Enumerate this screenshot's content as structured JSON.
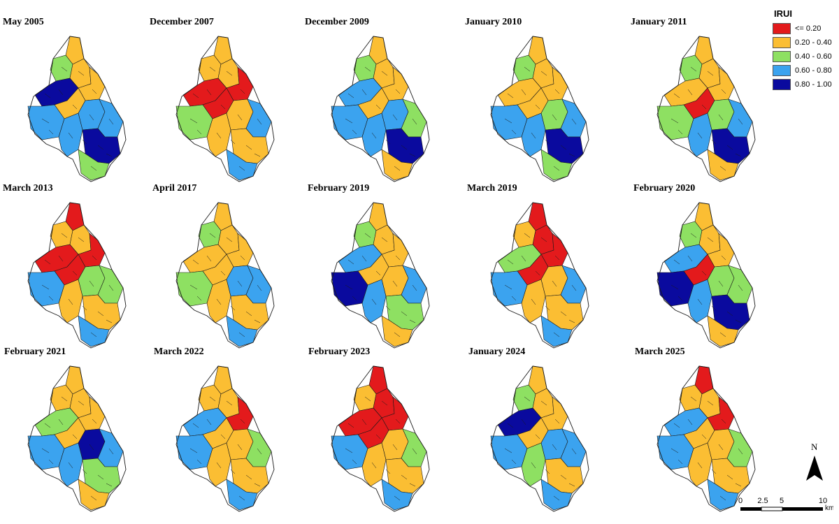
{
  "colors": {
    "c1": "#e31a1c",
    "c2": "#fbbe33",
    "c3": "#8ee062",
    "c4": "#3ba3ef",
    "c5": "#0a0a9e"
  },
  "legend": {
    "title": "IRUI",
    "classes": [
      {
        "label": "<= 0.20",
        "color": "#e31a1c"
      },
      {
        "label": "0.20 - 0.40",
        "color": "#fbbe33"
      },
      {
        "label": "0.40 - 0.60",
        "color": "#8ee062"
      },
      {
        "label": "0.60 - 0.80",
        "color": "#3ba3ef"
      },
      {
        "label": "0.80 - 1.00",
        "color": "#0a0a9e"
      }
    ]
  },
  "north_arrow": {
    "label": "N"
  },
  "scale_bar": {
    "ticks": [
      "0",
      "2.5",
      "5",
      "10"
    ],
    "unit": "km"
  },
  "panels": [
    {
      "title": "May 2005",
      "zones": {
        "n": "c2",
        "nw": "c3",
        "nc": "c2",
        "ne": "c2",
        "w": "c5",
        "c": "c2",
        "cc": "c4",
        "e": "c4",
        "sw": "c4",
        "s": "c4",
        "se": "c5",
        "sc": "c3"
      }
    },
    {
      "title": "December 2007",
      "zones": {
        "n": "c2",
        "nw": "c2",
        "nc": "c2",
        "ne": "c1",
        "w": "c1",
        "c": "c1",
        "cc": "c2",
        "e": "c4",
        "sw": "c3",
        "s": "c2",
        "se": "c2",
        "sc": "c4"
      }
    },
    {
      "title": "December 2009",
      "zones": {
        "n": "c2",
        "nw": "c3",
        "nc": "c2",
        "ne": "c2",
        "w": "c4",
        "c": "c2",
        "cc": "c4",
        "e": "c3",
        "sw": "c4",
        "s": "c4",
        "se": "c5",
        "sc": "c2"
      }
    },
    {
      "title": "January 2010",
      "zones": {
        "n": "c2",
        "nw": "c3",
        "nc": "c2",
        "ne": "c2",
        "w": "c2",
        "c": "c2",
        "cc": "c3",
        "e": "c4",
        "sw": "c4",
        "s": "c4",
        "se": "c5",
        "sc": "c3"
      }
    },
    {
      "title": "January 2011",
      "zones": {
        "n": "c2",
        "nw": "c3",
        "nc": "c2",
        "ne": "c2",
        "w": "c2",
        "c": "c1",
        "cc": "c3",
        "e": "c4",
        "sw": "c3",
        "s": "c4",
        "se": "c5",
        "sc": "c2"
      }
    },
    {
      "title": "March 2013",
      "zones": {
        "n": "c1",
        "nw": "c2",
        "nc": "c2",
        "ne": "c1",
        "w": "c1",
        "c": "c1",
        "cc": "c3",
        "e": "c3",
        "sw": "c4",
        "s": "c2",
        "se": "c2",
        "sc": "c4"
      }
    },
    {
      "title": "April 2017",
      "zones": {
        "n": "c2",
        "nw": "c3",
        "nc": "c2",
        "ne": "c2",
        "w": "c2",
        "c": "c2",
        "cc": "c4",
        "e": "c4",
        "sw": "c3",
        "s": "c2",
        "se": "c2",
        "sc": "c4"
      }
    },
    {
      "title": "February 2019",
      "zones": {
        "n": "c2",
        "nw": "c3",
        "nc": "c2",
        "ne": "c2",
        "w": "c4",
        "c": "c2",
        "cc": "c2",
        "e": "c4",
        "sw": "c5",
        "s": "c4",
        "se": "c3",
        "sc": "c2"
      }
    },
    {
      "title": "March 2019",
      "zones": {
        "n": "c1",
        "nw": "c2",
        "nc": "c1",
        "ne": "c1",
        "w": "c3",
        "c": "c1",
        "cc": "c2",
        "e": "c4",
        "sw": "c4",
        "s": "c2",
        "se": "c2",
        "sc": "c4"
      }
    },
    {
      "title": "February 2020",
      "zones": {
        "n": "c2",
        "nw": "c3",
        "nc": "c2",
        "ne": "c2",
        "w": "c4",
        "c": "c1",
        "cc": "c3",
        "e": "c3",
        "sw": "c5",
        "s": "c4",
        "se": "c5",
        "sc": "c2"
      }
    },
    {
      "title": "February 2021",
      "zones": {
        "n": "c2",
        "nw": "c2",
        "nc": "c2",
        "ne": "c2",
        "w": "c3",
        "c": "c2",
        "cc": "c5",
        "e": "c4",
        "sw": "c4",
        "s": "c4",
        "se": "c3",
        "sc": "c2"
      }
    },
    {
      "title": "March 2022",
      "zones": {
        "n": "c2",
        "nw": "c2",
        "nc": "c2",
        "ne": "c1",
        "w": "c4",
        "c": "c2",
        "cc": "c2",
        "e": "c3",
        "sw": "c4",
        "s": "c2",
        "se": "c2",
        "sc": "c4"
      }
    },
    {
      "title": "February 2023",
      "zones": {
        "n": "c1",
        "nw": "c2",
        "nc": "c1",
        "ne": "c1",
        "w": "c1",
        "c": "c1",
        "cc": "c2",
        "e": "c3",
        "sw": "c4",
        "s": "c2",
        "se": "c2",
        "sc": "c4"
      }
    },
    {
      "title": "January 2024",
      "zones": {
        "n": "c2",
        "nw": "c3",
        "nc": "c2",
        "ne": "c2",
        "w": "c5",
        "c": "c2",
        "cc": "c4",
        "e": "c4",
        "sw": "c4",
        "s": "c3",
        "se": "c2",
        "sc": "c4"
      }
    },
    {
      "title": "March 2025",
      "zones": {
        "n": "c1",
        "nw": "c2",
        "nc": "c2",
        "ne": "c1",
        "w": "c4",
        "c": "c2",
        "cc": "c2",
        "e": "c3",
        "sw": "c4",
        "s": "c2",
        "se": "c2",
        "sc": "c4"
      }
    }
  ]
}
